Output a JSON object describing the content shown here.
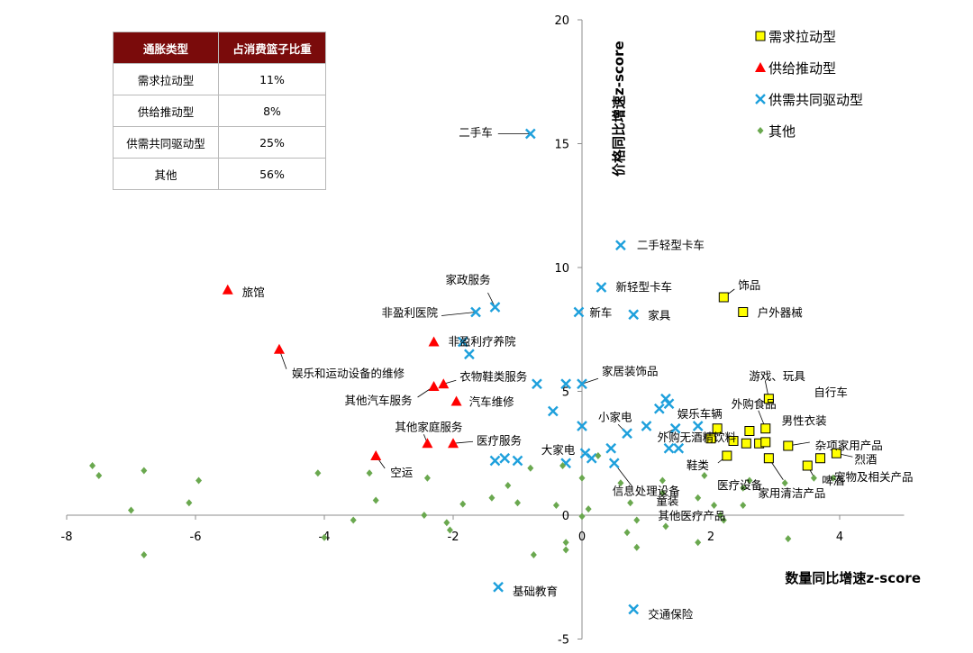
{
  "table": {
    "headers": [
      "通胀类型",
      "占消费篮子比重"
    ],
    "rows": [
      [
        "需求拉动型",
        "11%"
      ],
      [
        "供给推动型",
        "8%"
      ],
      [
        "供需共同驱动型",
        "25%"
      ],
      [
        "其他",
        "56%"
      ]
    ]
  },
  "chart_data": {
    "type": "scatter",
    "xlabel": "数量同比增速z-score",
    "ylabel": "价格同比增速z-score",
    "xlim": [
      -8,
      5
    ],
    "ylim": [
      -5,
      20
    ],
    "xticks": [
      "-8",
      "-6",
      "-4",
      "-2",
      "0",
      "2",
      "4"
    ],
    "yticks": [
      "-5",
      "0",
      "5",
      "10",
      "15",
      "20"
    ],
    "legend_position": "top-right",
    "colors": {
      "demand": "#ffff00",
      "supply": "#ff0000",
      "both": "#1ea0dc",
      "other": "#6aa84f"
    },
    "series": [
      {
        "name": "需求拉动型",
        "marker": "square",
        "points": [
          {
            "x": 2.2,
            "y": 8.8,
            "label": "饰品"
          },
          {
            "x": 2.5,
            "y": 8.2,
            "label": "户外器械"
          },
          {
            "x": 2.9,
            "y": 4.7,
            "label": "游戏、玩具"
          },
          {
            "x": 2.1,
            "y": 3.5
          },
          {
            "x": 2.0,
            "y": 3.1
          },
          {
            "x": 2.35,
            "y": 3.0
          },
          {
            "x": 2.6,
            "y": 3.4
          },
          {
            "x": 2.85,
            "y": 3.5,
            "label": "外购食品"
          },
          {
            "x": 2.55,
            "y": 2.9
          },
          {
            "x": 2.75,
            "y": 2.9
          },
          {
            "x": 2.85,
            "y": 2.95
          },
          {
            "x": 2.25,
            "y": 2.4,
            "label": "鞋类"
          },
          {
            "x": 2.9,
            "y": 2.3,
            "label": "家用清洁产品"
          },
          {
            "x": 3.2,
            "y": 2.8,
            "label": "杂项家用产品"
          },
          {
            "x": 3.5,
            "y": 2.0,
            "label": "啤酒"
          },
          {
            "x": 3.7,
            "y": 2.3
          },
          {
            "x": 3.95,
            "y": 2.5,
            "label": "烈酒"
          }
        ]
      },
      {
        "name": "供给推动型",
        "marker": "triangle",
        "points": [
          {
            "x": -5.5,
            "y": 9.1,
            "label": "旅馆"
          },
          {
            "x": -4.7,
            "y": 6.7,
            "label": "娱乐和运动设备的维修"
          },
          {
            "x": -2.3,
            "y": 7.0,
            "label": "非盈利疗养院"
          },
          {
            "x": -2.3,
            "y": 5.2,
            "label": "其他汽车服务"
          },
          {
            "x": -2.15,
            "y": 5.3,
            "label": "衣物鞋类服务"
          },
          {
            "x": -1.95,
            "y": 4.6,
            "label": "汽车维修"
          },
          {
            "x": -2.4,
            "y": 2.9,
            "label": "其他家庭服务"
          },
          {
            "x": -2.0,
            "y": 2.9,
            "label": "医疗服务"
          },
          {
            "x": -3.2,
            "y": 2.4,
            "label": "空运"
          }
        ]
      },
      {
        "name": "供需共同驱动型",
        "marker": "x",
        "points": [
          {
            "x": -0.8,
            "y": 15.4,
            "label": "二手车"
          },
          {
            "x": 0.6,
            "y": 10.9,
            "label": "二手轻型卡车"
          },
          {
            "x": 0.3,
            "y": 9.2,
            "label": "新轻型卡车"
          },
          {
            "x": -0.05,
            "y": 8.2,
            "label": "新车"
          },
          {
            "x": 0.8,
            "y": 8.1,
            "label": "家具"
          },
          {
            "x": -1.35,
            "y": 8.4,
            "label": "家政服务"
          },
          {
            "x": -1.65,
            "y": 8.2,
            "label": "非盈利医院"
          },
          {
            "x": -1.85,
            "y": 7.0
          },
          {
            "x": -1.75,
            "y": 6.5
          },
          {
            "x": -0.7,
            "y": 5.3
          },
          {
            "x": -0.25,
            "y": 5.3
          },
          {
            "x": 0.0,
            "y": 5.3,
            "label": "家居装饰品"
          },
          {
            "x": 1.2,
            "y": 4.3,
            "label": "娱乐车辆"
          },
          {
            "x": 1.35,
            "y": 4.5
          },
          {
            "x": 1.3,
            "y": 4.7
          },
          {
            "x": -0.45,
            "y": 4.2
          },
          {
            "x": 0.0,
            "y": 3.6
          },
          {
            "x": 0.7,
            "y": 3.3,
            "label": "小家电"
          },
          {
            "x": 1.0,
            "y": 3.6
          },
          {
            "x": 1.45,
            "y": 3.5,
            "label": "外购无酒精饮料"
          },
          {
            "x": 1.8,
            "y": 3.6
          },
          {
            "x": 0.05,
            "y": 2.5
          },
          {
            "x": 0.15,
            "y": 2.3,
            "label": "大家电"
          },
          {
            "x": 0.45,
            "y": 2.7
          },
          {
            "x": 0.5,
            "y": 2.1,
            "label": "信息处理设备"
          },
          {
            "x": 1.35,
            "y": 2.7
          },
          {
            "x": 1.5,
            "y": 2.7
          },
          {
            "x": -1.35,
            "y": 2.2
          },
          {
            "x": -1.2,
            "y": 2.3
          },
          {
            "x": -1.0,
            "y": 2.2
          },
          {
            "x": -0.25,
            "y": 2.1
          },
          {
            "x": -1.3,
            "y": -2.9,
            "label": "基础教育"
          },
          {
            "x": 0.8,
            "y": -3.8,
            "label": "交通保险"
          }
        ]
      },
      {
        "name": "其他",
        "marker": "diamond",
        "points": [
          {
            "x": -7.6,
            "y": 2.0
          },
          {
            "x": -7.5,
            "y": 1.6
          },
          {
            "x": -6.8,
            "y": 1.8
          },
          {
            "x": -7.0,
            "y": 0.2
          },
          {
            "x": -6.8,
            "y": -1.6
          },
          {
            "x": -6.1,
            "y": 0.5
          },
          {
            "x": -5.95,
            "y": 1.4
          },
          {
            "x": -4.1,
            "y": 1.7
          },
          {
            "x": -4.0,
            "y": -0.9
          },
          {
            "x": -3.55,
            "y": -0.2
          },
          {
            "x": -3.3,
            "y": 1.7
          },
          {
            "x": -3.2,
            "y": 0.6
          },
          {
            "x": -2.45,
            "y": 0.0
          },
          {
            "x": -2.4,
            "y": 1.5
          },
          {
            "x": -2.1,
            "y": -0.3
          },
          {
            "x": -2.05,
            "y": -0.6
          },
          {
            "x": -1.85,
            "y": 0.45
          },
          {
            "x": -1.4,
            "y": 0.7
          },
          {
            "x": -1.15,
            "y": 1.2
          },
          {
            "x": -1.0,
            "y": 0.5
          },
          {
            "x": -0.8,
            "y": 1.9
          },
          {
            "x": -0.75,
            "y": -1.6
          },
          {
            "x": -0.4,
            "y": 0.4
          },
          {
            "x": -0.25,
            "y": -1.1
          },
          {
            "x": -0.25,
            "y": -1.4
          },
          {
            "x": 0.0,
            "y": 1.5
          },
          {
            "x": 0.0,
            "y": -0.05
          },
          {
            "x": 0.1,
            "y": 0.25
          },
          {
            "x": 0.25,
            "y": 2.4
          },
          {
            "x": 0.6,
            "y": 1.3
          },
          {
            "x": 0.7,
            "y": -0.7
          },
          {
            "x": 0.75,
            "y": 0.5
          },
          {
            "x": 0.85,
            "y": -0.2
          },
          {
            "x": 0.85,
            "y": -1.3
          },
          {
            "x": 1.25,
            "y": 0.9
          },
          {
            "x": 1.3,
            "y": -0.45
          },
          {
            "x": 1.25,
            "y": 1.4
          },
          {
            "x": 1.8,
            "y": 0.7
          },
          {
            "x": 1.8,
            "y": -1.1
          },
          {
            "x": 2.05,
            "y": 0.4
          },
          {
            "x": 2.15,
            "y": 0.0
          },
          {
            "x": 2.2,
            "y": -0.2
          },
          {
            "x": 2.5,
            "y": 1.1
          },
          {
            "x": 2.5,
            "y": 0.4
          },
          {
            "x": 2.6,
            "y": 1.4
          },
          {
            "x": 3.15,
            "y": 1.3
          },
          {
            "x": 3.2,
            "y": -0.95
          },
          {
            "x": 3.6,
            "y": 1.5
          },
          {
            "x": 3.9,
            "y": 1.5
          },
          {
            "x": -0.3,
            "y": 2.0
          },
          {
            "x": 1.9,
            "y": 1.6
          }
        ]
      }
    ],
    "annotations": [
      {
        "text": "童装",
        "x": 1.6,
        "y": 1.3
      },
      {
        "text": "男性衣装",
        "x": 3.1,
        "y": 3.8
      },
      {
        "text": "自行车",
        "x": 3.6,
        "y": 4.8
      },
      {
        "text": "医疗设备",
        "x": 2.1,
        "y": 1.5
      },
      {
        "text": "其他医疗产品",
        "x": 1.6,
        "y": 0.7
      },
      {
        "text": "宠物及相关产品",
        "x": 4.0,
        "y": 1.6
      }
    ]
  }
}
